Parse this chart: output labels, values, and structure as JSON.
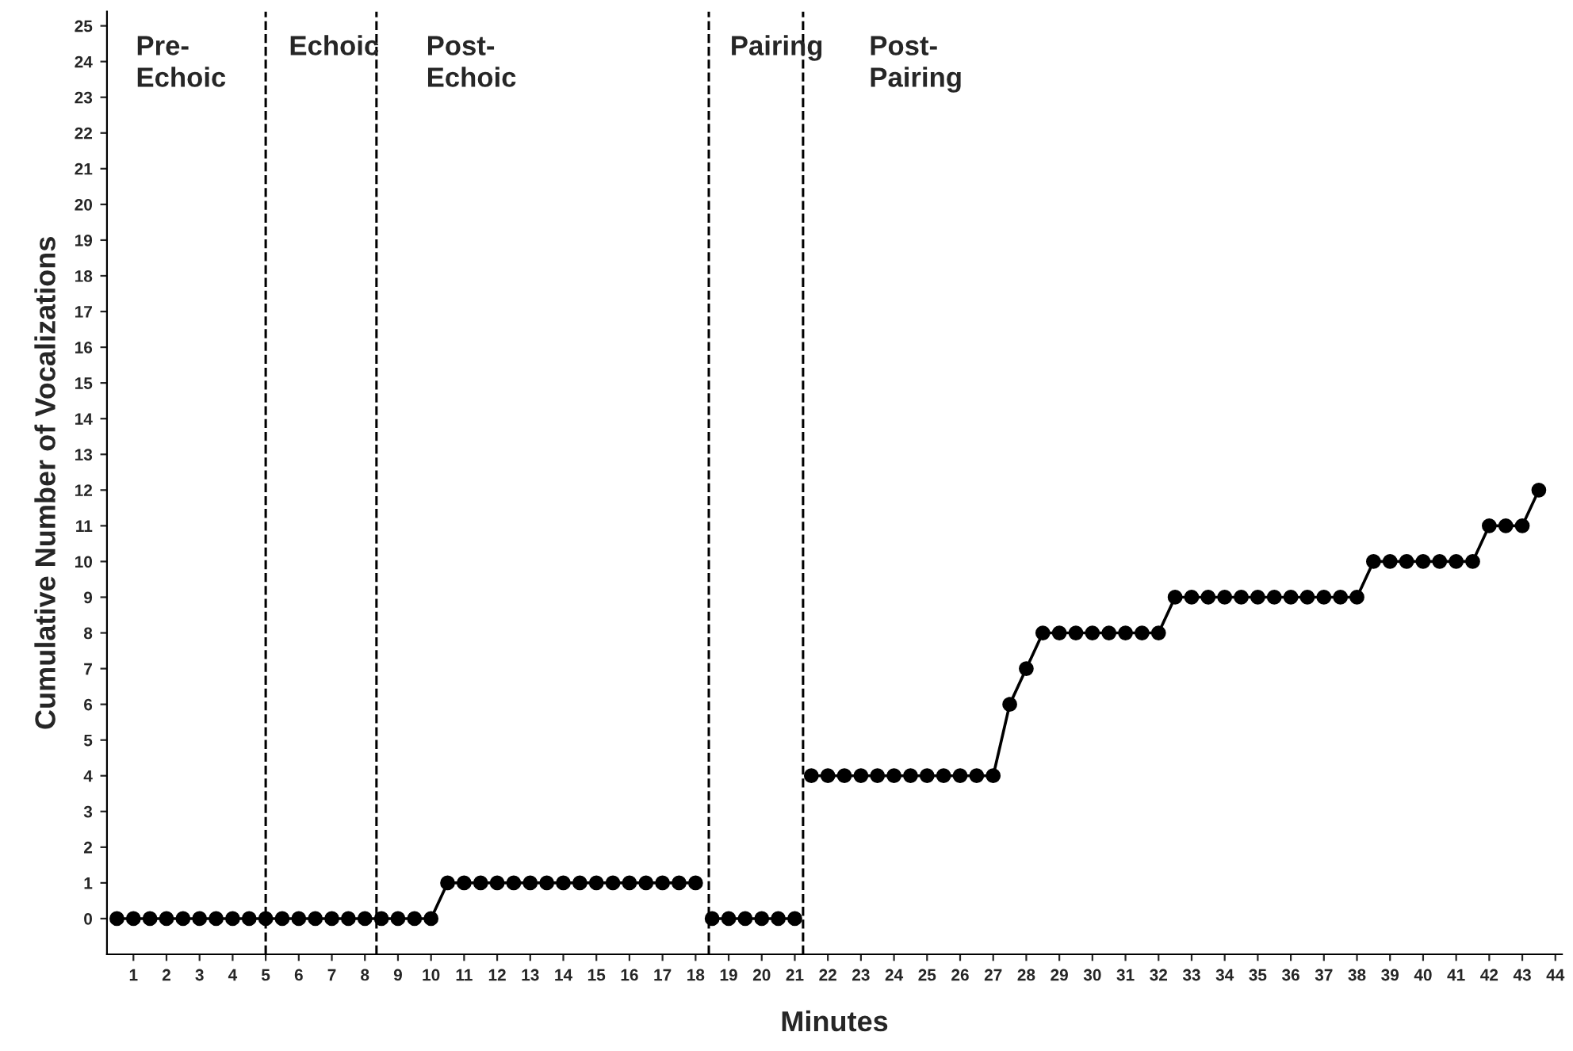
{
  "chart_data": {
    "type": "line",
    "xlabel": "Minutes",
    "ylabel": "Cumulative Number of Vocalizations",
    "series": [
      {
        "color": "#000000",
        "x": [
          0.5,
          1,
          1.5,
          2,
          2.5,
          3,
          3.5,
          4,
          4.5,
          5,
          5.5,
          6,
          6.5,
          7,
          7.5,
          8,
          8.5,
          9,
          9.5,
          10,
          10.5,
          11,
          11.5,
          12,
          12.5,
          13,
          13.5,
          14,
          14.5,
          15,
          15.5,
          16,
          16.5,
          17,
          17.5,
          18
        ],
        "values": [
          0,
          0,
          0,
          0,
          0,
          0,
          0,
          0,
          0,
          0,
          0,
          0,
          0,
          0,
          0,
          0,
          0,
          0,
          0,
          0,
          1,
          1,
          1,
          1,
          1,
          1,
          1,
          1,
          1,
          1,
          1,
          1,
          1,
          1,
          1,
          1
        ]
      },
      {
        "color": "#000000",
        "x": [
          18.5,
          19,
          19.5,
          20,
          20.5,
          21
        ],
        "values": [
          0,
          0,
          0,
          0,
          0,
          0
        ]
      },
      {
        "color": "#000000",
        "x": [
          21.5,
          22,
          22.5,
          23,
          23.5,
          24,
          24.5,
          25,
          25.5,
          26,
          26.5,
          27,
          27.5,
          28,
          28.5,
          29,
          29.5,
          30,
          30.5,
          31,
          31.5,
          32,
          32.5,
          33,
          33.5,
          34,
          34.5,
          35,
          35.5,
          36,
          36.5,
          37,
          37.5,
          38,
          38.5,
          39,
          39.5,
          40,
          40.5,
          41,
          41.5,
          42,
          42.5,
          43,
          43.5
        ],
        "values": [
          4,
          4,
          4,
          4,
          4,
          4,
          4,
          4,
          4,
          4,
          4,
          4,
          6,
          7,
          8,
          8,
          8,
          8,
          8,
          8,
          8,
          8,
          9,
          9,
          9,
          9,
          9,
          9,
          9,
          9,
          9,
          9,
          9,
          9,
          10,
          10,
          10,
          10,
          10,
          10,
          10,
          11,
          11,
          11,
          12
        ]
      }
    ],
    "xlim": [
      0.2,
      44.2
    ],
    "xticks": [
      1,
      2,
      3,
      4,
      5,
      6,
      7,
      8,
      9,
      10,
      11,
      12,
      13,
      14,
      15,
      16,
      17,
      18,
      19,
      20,
      21,
      22,
      23,
      24,
      25,
      26,
      27,
      28,
      29,
      30,
      31,
      32,
      33,
      34,
      35,
      36,
      37,
      38,
      39,
      40,
      41,
      42,
      43,
      44
    ],
    "ylim": [
      -1,
      25.4
    ],
    "yticks": [
      0,
      1,
      2,
      3,
      4,
      5,
      6,
      7,
      8,
      9,
      10,
      11,
      12,
      13,
      14,
      15,
      16,
      17,
      18,
      19,
      20,
      21,
      22,
      23,
      24,
      25
    ],
    "marker": "circle",
    "line_style": "solid",
    "ref_lines": [
      {
        "axis": "x",
        "value": 5,
        "color": "#000000",
        "line_style": "dashed"
      },
      {
        "axis": "x",
        "value": 8.35,
        "color": "#000000",
        "line_style": "dashed"
      },
      {
        "axis": "x",
        "value": 18.4,
        "color": "#000000",
        "line_style": "dashed"
      },
      {
        "axis": "x",
        "value": 21.25,
        "color": "#000000",
        "line_style": "dashed"
      }
    ],
    "annotations": [
      "Pre-\nEchoic",
      "Echoic",
      "Post-\nEchoic",
      "Pairing",
      "Post-\nPairing"
    ]
  }
}
